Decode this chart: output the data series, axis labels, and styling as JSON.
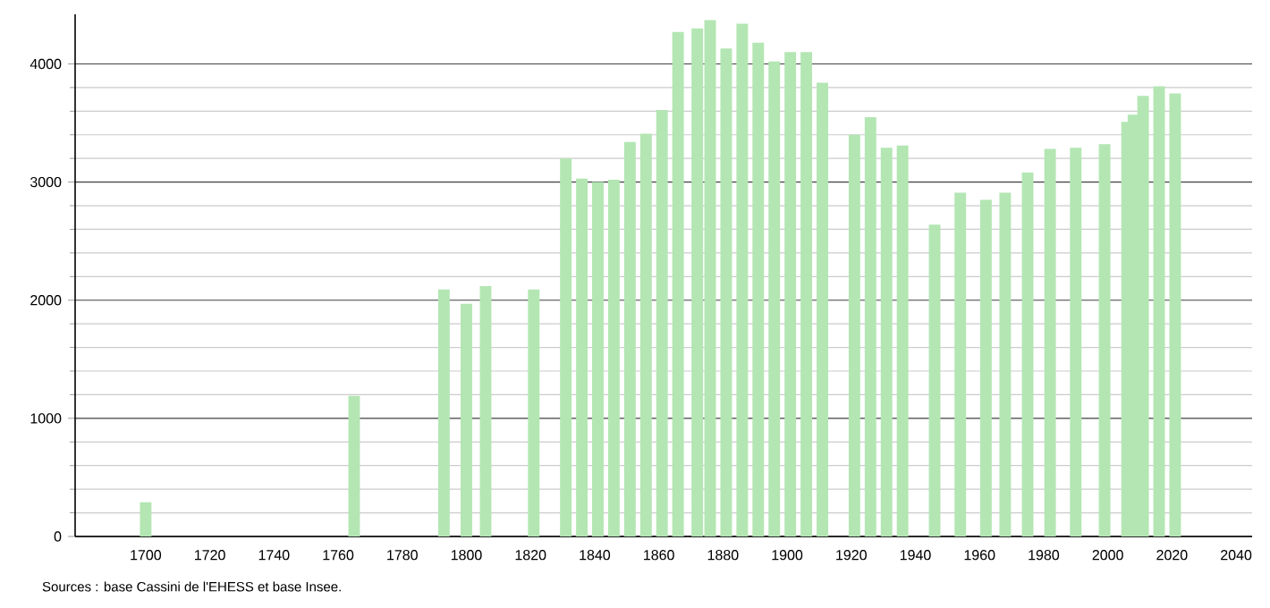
{
  "chart_data": {
    "type": "bar",
    "color": "#b3e6b3",
    "x": [
      1700,
      1765,
      1793,
      1800,
      1806,
      1821,
      1831,
      1836,
      1841,
      1846,
      1851,
      1856,
      1861,
      1866,
      1872,
      1876,
      1881,
      1886,
      1891,
      1896,
      1901,
      1906,
      1911,
      1921,
      1926,
      1931,
      1936,
      1946,
      1954,
      1962,
      1968,
      1975,
      1982,
      1990,
      1999,
      2006,
      2008,
      2011,
      2016,
      2021
    ],
    "values": [
      290,
      1190,
      2090,
      1970,
      2120,
      2090,
      3200,
      3030,
      3000,
      3020,
      3340,
      3410,
      3610,
      4270,
      4300,
      4370,
      4130,
      4340,
      4180,
      4020,
      4100,
      4100,
      3840,
      3400,
      3550,
      3290,
      3310,
      2640,
      2910,
      2850,
      2910,
      3080,
      3280,
      3290,
      3320,
      3510,
      3570,
      3730,
      3810,
      3750
    ],
    "xlim": [
      1678,
      2045
    ],
    "ylim": [
      0,
      4420
    ],
    "xticks": [
      1700,
      1720,
      1740,
      1760,
      1780,
      1800,
      1820,
      1840,
      1860,
      1880,
      1900,
      1920,
      1940,
      1960,
      1980,
      2000,
      2020,
      2040
    ],
    "yticks": [
      0,
      1000,
      2000,
      3000,
      4000
    ],
    "grid": "y",
    "annotations": [
      "Sources : base Cassini de l'EHESS et base Insee."
    ]
  }
}
